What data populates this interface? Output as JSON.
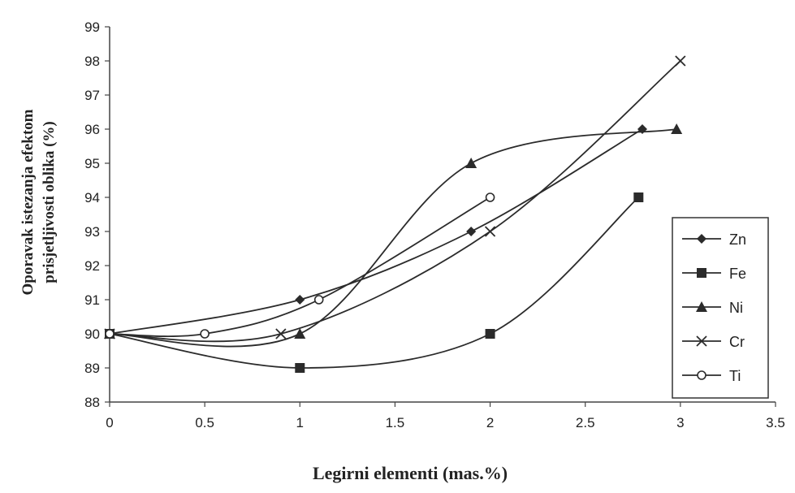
{
  "chart_data": {
    "type": "line",
    "title": "",
    "xlabel": "Legirni elementi (mas.%)",
    "ylabel": [
      "Oporavak istezanja efektom",
      "prisjetljivosti oblika (%)"
    ],
    "xlim": [
      0,
      3.5
    ],
    "ylim": [
      88,
      99
    ],
    "xticks": [
      "0",
      "0.5",
      "1",
      "1.5",
      "2",
      "2.5",
      "3",
      "3.5"
    ],
    "yticks": [
      "88",
      "89",
      "90",
      "91",
      "92",
      "93",
      "94",
      "95",
      "96",
      "97",
      "98",
      "99"
    ],
    "grid": false,
    "legend_position": "bottom-right",
    "line_color": "#2b2b2b",
    "series": [
      {
        "name": "Zn",
        "marker": "diamond",
        "x": [
          0,
          1,
          1.9,
          2.8
        ],
        "y": [
          90,
          91,
          93,
          96
        ]
      },
      {
        "name": "Fe",
        "marker": "square",
        "x": [
          0,
          1,
          2,
          2.78
        ],
        "y": [
          90,
          89,
          90,
          94
        ]
      },
      {
        "name": "Ni",
        "marker": "triangle",
        "x": [
          0,
          1,
          1.9,
          2.98
        ],
        "y": [
          90,
          90,
          95,
          96
        ]
      },
      {
        "name": "Cr",
        "marker": "x",
        "x": [
          0,
          0.9,
          2,
          3
        ],
        "y": [
          90,
          90,
          93,
          98
        ]
      },
      {
        "name": "Ti",
        "marker": "open-circle",
        "x": [
          0,
          0.5,
          1.1,
          2
        ],
        "y": [
          90,
          90,
          91,
          94
        ]
      }
    ]
  }
}
